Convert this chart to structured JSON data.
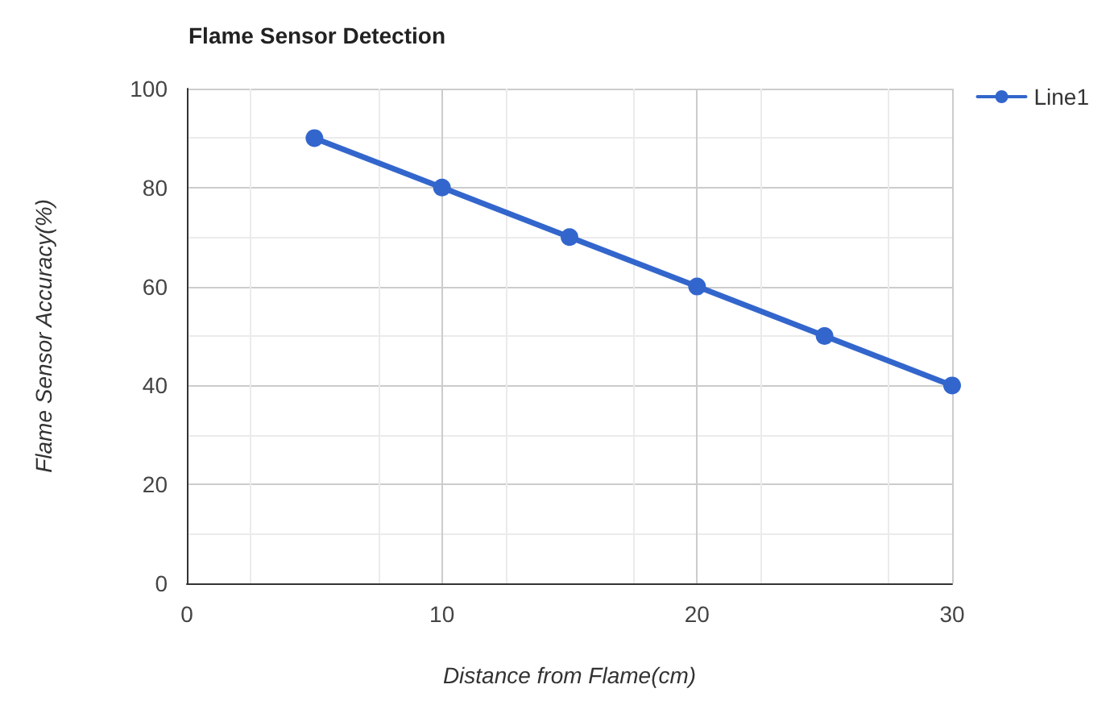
{
  "chart_data": {
    "type": "line",
    "title": "Flame Sensor Detection",
    "xlabel": "Distance from Flame(cm)",
    "ylabel": "Flame Sensor Accuracy(%)",
    "x": [
      5,
      10,
      15,
      20,
      25,
      30
    ],
    "series": [
      {
        "name": "Line1",
        "color": "#3366cc",
        "values": [
          90,
          80,
          70,
          60,
          50,
          40
        ]
      }
    ],
    "xlim": [
      0,
      30
    ],
    "xticks": [
      0,
      10,
      20,
      30
    ],
    "ylim": [
      0,
      100
    ],
    "yticks": [
      0,
      20,
      40,
      60,
      80,
      100
    ],
    "grid": true,
    "legend": "top right",
    "marker": "circle",
    "line_style": "solid"
  }
}
